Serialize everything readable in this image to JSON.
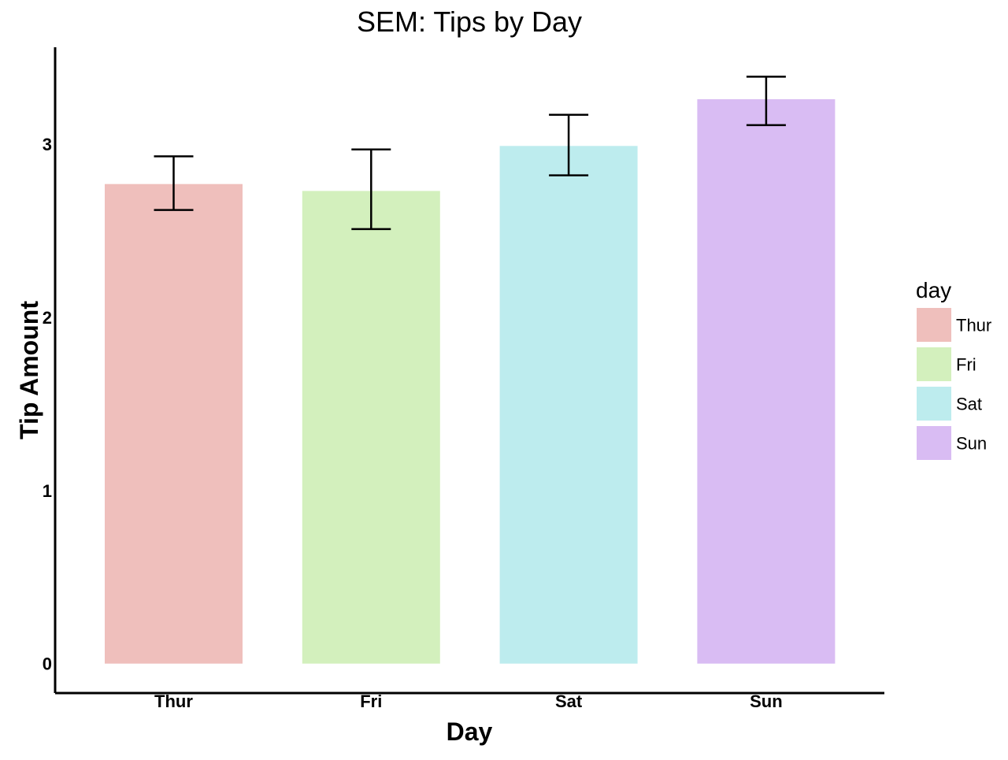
{
  "chart_data": {
    "type": "bar",
    "title": "SEM: Tips by Day",
    "xlabel": "Day",
    "ylabel": "Tip Amount",
    "categories": [
      "Thur",
      "Fri",
      "Sat",
      "Sun"
    ],
    "values": [
      2.77,
      2.73,
      2.99,
      3.26
    ],
    "error_low": [
      2.62,
      2.51,
      2.82,
      3.11
    ],
    "error_high": [
      2.93,
      2.97,
      3.17,
      3.39
    ],
    "colors": [
      "#efbfbc",
      "#d3f0bd",
      "#bdecee",
      "#d9bcf3"
    ],
    "ylim": [
      -0.17,
      3.56
    ],
    "yticks": [
      0,
      1,
      2,
      3
    ],
    "grid": false,
    "legend": {
      "title": "day",
      "position": "right",
      "entries": [
        "Thur",
        "Fri",
        "Sat",
        "Sun"
      ]
    }
  }
}
